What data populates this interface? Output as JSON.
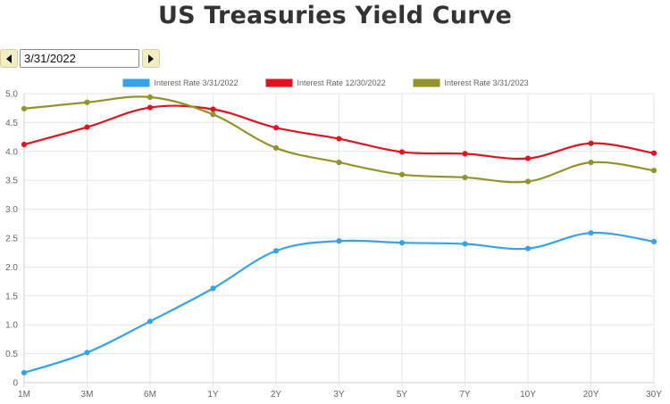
{
  "chart_data": {
    "type": "line",
    "title": "US Treasuries Yield Curve",
    "categories": [
      "1M",
      "3M",
      "6M",
      "1Y",
      "2Y",
      "3Y",
      "5Y",
      "7Y",
      "10Y",
      "20Y",
      "30Y"
    ],
    "ylim": [
      0,
      5.0
    ],
    "yticks": [
      "0",
      "0.5",
      "1.0",
      "1.5",
      "2.0",
      "2.5",
      "3.0",
      "3.5",
      "4.0",
      "4.5",
      "5.0"
    ],
    "grid": true,
    "legend_position": "top",
    "series": [
      {
        "name": "Interest Rate 3/31/2022",
        "color": "#36a2eb",
        "values": [
          0.17,
          0.52,
          1.06,
          1.63,
          2.28,
          2.45,
          2.42,
          2.4,
          2.32,
          2.59,
          2.44
        ]
      },
      {
        "name": "Interest Rate 12/30/2022",
        "color": "#e3121f",
        "values": [
          4.12,
          4.42,
          4.76,
          4.73,
          4.41,
          4.22,
          3.99,
          3.96,
          3.88,
          4.14,
          3.97
        ]
      },
      {
        "name": "Interest Rate 3/31/2023",
        "color": "#939329",
        "values": [
          4.74,
          4.85,
          4.94,
          4.64,
          4.06,
          3.81,
          3.6,
          3.55,
          3.48,
          3.81,
          3.67
        ]
      }
    ]
  },
  "controls": {
    "date_value": "3/31/2022"
  }
}
